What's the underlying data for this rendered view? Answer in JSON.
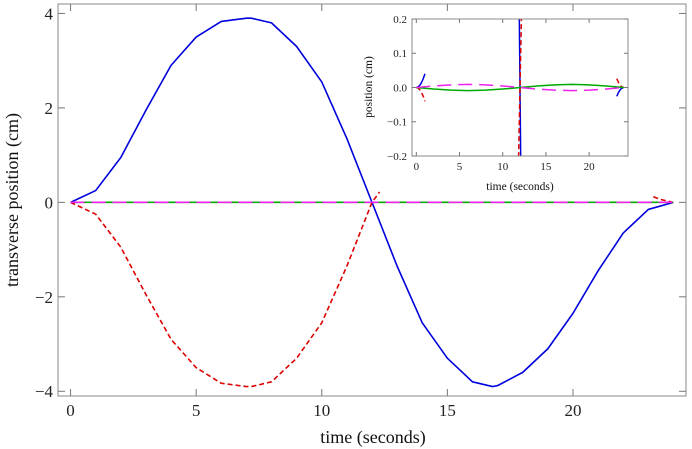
{
  "chart_data": [
    {
      "type": "line",
      "xlabel": "time (seconds)",
      "ylabel": "transverse position (cm)",
      "xlim": [
        -0.5,
        24.5
      ],
      "ylim": [
        -4.1,
        4.2
      ],
      "xticks": [
        0,
        5,
        10,
        15,
        20
      ],
      "yticks": [
        -4,
        -2,
        0,
        2,
        4
      ],
      "ytick_labels": [
        "−4",
        "−2",
        "0",
        "2",
        "4"
      ],
      "grid": false,
      "legend": "none",
      "series": [
        {
          "color": "#0000dd",
          "style": "solid",
          "x": [
            0,
            1,
            2,
            3,
            4,
            5,
            6,
            7,
            7.2,
            8,
            9,
            10,
            11,
            12,
            13,
            14,
            15,
            16,
            16.8,
            17,
            18,
            19,
            20,
            21,
            22,
            23,
            24
          ],
          "y": [
            0,
            0.25,
            0.95,
            1.95,
            2.9,
            3.5,
            3.83,
            3.9,
            3.9,
            3.8,
            3.3,
            2.55,
            1.35,
            0,
            -1.35,
            -2.55,
            -3.3,
            -3.8,
            -3.9,
            -3.88,
            -3.6,
            -3.1,
            -2.35,
            -1.45,
            -0.65,
            -0.15,
            0
          ]
        },
        {
          "color": "#dd0000",
          "style": "dashed",
          "x": [
            0,
            1,
            2,
            3,
            4,
            5,
            6,
            7,
            7.2,
            8,
            9,
            10,
            11,
            12,
            12.3
          ],
          "y": [
            0,
            -0.25,
            -0.95,
            -1.95,
            -2.9,
            -3.5,
            -3.83,
            -3.9,
            -3.9,
            -3.8,
            -3.3,
            -2.55,
            -1.35,
            0,
            0.22
          ]
        },
        {
          "color": "#dd0000",
          "style": "dashed",
          "x": [
            23.2,
            23.5,
            24
          ],
          "y": [
            0.12,
            0.06,
            0
          ]
        },
        {
          "color": "#00aa00",
          "style": "solid",
          "x": [
            0,
            24
          ],
          "y": [
            0,
            0
          ]
        },
        {
          "color": "#ee22ee",
          "style": "long-dash",
          "x": [
            0,
            24
          ],
          "y": [
            0,
            0
          ]
        }
      ]
    },
    {
      "type": "line",
      "xlabel": "time (seconds)",
      "ylabel": "position (cm)",
      "xlim": [
        -0.5,
        24.5
      ],
      "ylim": [
        -0.2,
        0.2
      ],
      "xticks": [
        0,
        5,
        10,
        15,
        20
      ],
      "yticks": [
        -0.2,
        -0.1,
        0.0,
        0.1,
        0.2
      ],
      "ytick_labels": [
        "−0.2",
        "−0.1",
        "0.0",
        "0.1",
        "0.2"
      ],
      "grid": false,
      "legend": "none",
      "series": [
        {
          "color": "#0000dd",
          "style": "solid",
          "x": [
            0,
            0.2,
            0.4,
            0.6,
            0.8,
            1.0
          ],
          "y": [
            0,
            0.0016,
            0.0064,
            0.0144,
            0.0256,
            0.04
          ]
        },
        {
          "color": "#0000dd",
          "style": "solid",
          "x": [
            11.9,
            12,
            12.1
          ],
          "y": [
            0.25,
            0,
            -0.25
          ]
        },
        {
          "color": "#0000dd",
          "style": "solid",
          "x": [
            23.2,
            23.4,
            23.6,
            23.8,
            24
          ],
          "y": [
            -0.0256,
            -0.0144,
            -0.0064,
            -0.0016,
            0
          ]
        },
        {
          "color": "#dd0000",
          "style": "dashed",
          "x": [
            0,
            0.2,
            0.4,
            0.6,
            0.8,
            1.0
          ],
          "y": [
            0,
            -0.0016,
            -0.0064,
            -0.0144,
            -0.0256,
            -0.04
          ]
        },
        {
          "color": "#dd0000",
          "style": "dashed",
          "x": [
            11.8,
            12,
            12.2
          ],
          "y": [
            -0.25,
            0,
            0.25
          ]
        },
        {
          "color": "#dd0000",
          "style": "dashed",
          "x": [
            23.2,
            23.4,
            23.6,
            23.8,
            24
          ],
          "y": [
            0.0256,
            0.0144,
            0.0064,
            0.0016,
            0
          ]
        },
        {
          "color": "#00aa00",
          "style": "solid",
          "x": [
            0,
            2,
            4,
            6,
            8,
            10,
            12,
            14,
            16,
            18,
            20,
            22,
            24
          ],
          "y": [
            0,
            -0.0045,
            -0.0078,
            -0.009,
            -0.0078,
            -0.0045,
            0,
            0.0045,
            0.0078,
            0.009,
            0.0078,
            0.0045,
            0
          ]
        },
        {
          "color": "#ee22ee",
          "style": "long-dash",
          "x": [
            0,
            2,
            4,
            6,
            8,
            10,
            12,
            14,
            16,
            18,
            20,
            22,
            24
          ],
          "y": [
            0,
            0.0045,
            0.0078,
            0.009,
            0.0078,
            0.0045,
            0,
            -0.0045,
            -0.0078,
            -0.009,
            -0.0078,
            -0.0045,
            0
          ]
        }
      ]
    }
  ]
}
